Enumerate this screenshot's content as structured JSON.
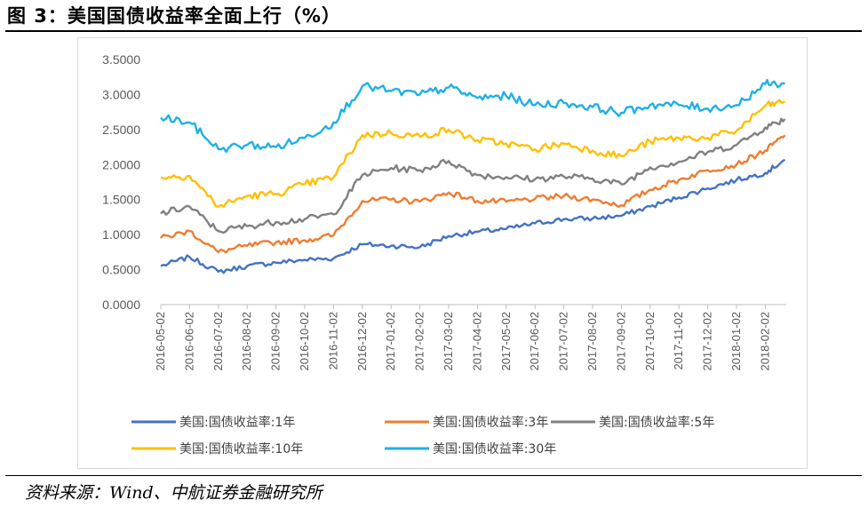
{
  "figure": {
    "title": "图 3：美国国债收益率全面上行（%）",
    "source": "资料来源：Wind、中航证券金融研究所"
  },
  "chart_data": {
    "type": "line",
    "title": "美国国债收益率全面上行（%）",
    "xlabel": "",
    "ylabel": "",
    "ylim": [
      0,
      3.5
    ],
    "yticks": [
      "0.0000",
      "0.5000",
      "1.0000",
      "1.5000",
      "2.0000",
      "2.5000",
      "3.0000",
      "3.5000"
    ],
    "categories": [
      "2016-05-02",
      "2016-06-02",
      "2016-07-02",
      "2016-08-02",
      "2016-09-02",
      "2016-10-02",
      "2016-11-02",
      "2016-12-02",
      "2017-01-02",
      "2017-02-02",
      "2017-03-02",
      "2017-04-02",
      "2017-05-02",
      "2017-06-02",
      "2017-07-02",
      "2017-08-02",
      "2017-09-02",
      "2017-10-02",
      "2017-11-02",
      "2017-12-02",
      "2018-01-02",
      "2018-02-02"
    ],
    "grid": false,
    "legend_position": "bottom",
    "series": [
      {
        "name": "美国:国债收益率:1年",
        "color": "#4472c4",
        "values": [
          0.55,
          0.68,
          0.47,
          0.55,
          0.6,
          0.64,
          0.66,
          0.86,
          0.84,
          0.82,
          0.98,
          1.04,
          1.08,
          1.16,
          1.22,
          1.23,
          1.27,
          1.4,
          1.53,
          1.66,
          1.78,
          1.88
        ],
        "end": 2.07
      },
      {
        "name": "美国:国债收益率:3年",
        "color": "#ed7d31",
        "values": [
          0.95,
          1.05,
          0.75,
          0.84,
          0.89,
          0.92,
          0.99,
          1.48,
          1.5,
          1.47,
          1.6,
          1.48,
          1.47,
          1.51,
          1.55,
          1.5,
          1.42,
          1.64,
          1.78,
          1.92,
          2.0,
          2.2
        ],
        "end": 2.42
      },
      {
        "name": "美国:国债收益率:5年",
        "color": "#808080",
        "values": [
          1.3,
          1.4,
          1.05,
          1.12,
          1.18,
          1.22,
          1.29,
          1.85,
          1.95,
          1.92,
          2.05,
          1.85,
          1.82,
          1.79,
          1.83,
          1.8,
          1.72,
          1.96,
          2.04,
          2.18,
          2.28,
          2.53
        ],
        "end": 2.65
      },
      {
        "name": "美国:国债收益率:10年",
        "color": "#ffc000",
        "values": [
          1.82,
          1.84,
          1.4,
          1.55,
          1.58,
          1.72,
          1.82,
          2.42,
          2.45,
          2.4,
          2.5,
          2.35,
          2.3,
          2.22,
          2.3,
          2.2,
          2.12,
          2.33,
          2.38,
          2.38,
          2.48,
          2.84
        ],
        "end": 2.9
      },
      {
        "name": "美国:国债收益率:30年",
        "color": "#1fb0e6",
        "values": [
          2.67,
          2.6,
          2.22,
          2.28,
          2.25,
          2.38,
          2.6,
          3.12,
          3.05,
          3.0,
          3.1,
          2.95,
          2.98,
          2.85,
          2.88,
          2.82,
          2.74,
          2.85,
          2.85,
          2.8,
          2.85,
          3.15
        ],
        "end": 3.15
      }
    ]
  }
}
